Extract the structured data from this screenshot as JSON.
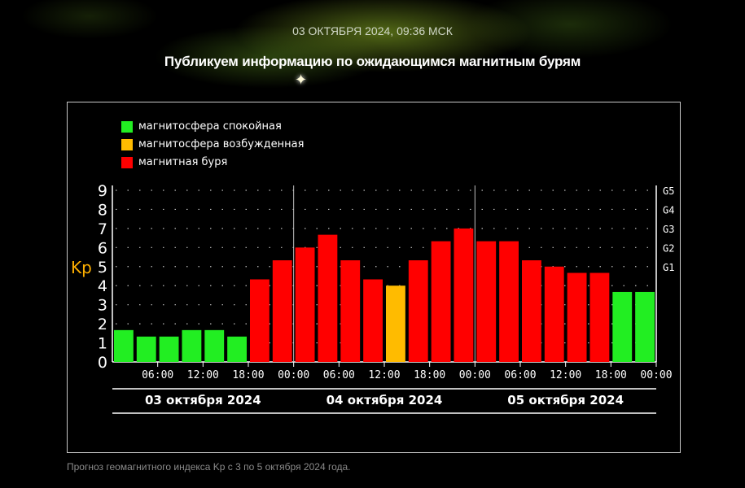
{
  "header": {
    "date_line": "03 ОКТЯБРЯ 2024, 09:36 МСК",
    "headline": "Публикуем информацию по ожидающимся магнитным бурям",
    "star_glyph": "✦"
  },
  "chart_data": {
    "type": "bar",
    "title": "",
    "ylabel": "Kp",
    "ylim": [
      0,
      9
    ],
    "yticks": [
      "0",
      "1",
      "2",
      "3",
      "4",
      "5",
      "6",
      "7",
      "8",
      "9"
    ],
    "g_levels": [
      {
        "label": "G1",
        "kp": 5
      },
      {
        "label": "G2",
        "kp": 6
      },
      {
        "label": "G3",
        "kp": 7
      },
      {
        "label": "G4",
        "kp": 8
      },
      {
        "label": "G5",
        "kp": 9
      }
    ],
    "legend": [
      {
        "key": "calm",
        "label": "магнитосфера спокойная",
        "color": "#22ee22"
      },
      {
        "key": "excited",
        "label": "магнитосфера возбужденная",
        "color": "#ffbb00"
      },
      {
        "key": "storm",
        "label": "магнитная буря",
        "color": "#ff0000"
      }
    ],
    "values": [
      1.67,
      1.33,
      1.33,
      1.67,
      1.67,
      1.33,
      4.33,
      5.33,
      6.0,
      6.67,
      5.33,
      4.33,
      4.0,
      5.33,
      6.33,
      7.0,
      6.33,
      6.33,
      5.33,
      5.0,
      4.67,
      4.67,
      3.67,
      3.67
    ],
    "levels": [
      "calm",
      "calm",
      "calm",
      "calm",
      "calm",
      "calm",
      "storm",
      "storm",
      "storm",
      "storm",
      "storm",
      "storm",
      "excited",
      "storm",
      "storm",
      "storm",
      "storm",
      "storm",
      "storm",
      "storm",
      "storm",
      "storm",
      "calm",
      "calm"
    ],
    "hour_ticks": [
      {
        "label": "06:00",
        "slot": 2
      },
      {
        "label": "12:00",
        "slot": 4
      },
      {
        "label": "18:00",
        "slot": 6
      },
      {
        "label": "00:00",
        "slot": 8
      },
      {
        "label": "06:00",
        "slot": 10
      },
      {
        "label": "12:00",
        "slot": 12
      },
      {
        "label": "18:00",
        "slot": 14
      },
      {
        "label": "00:00",
        "slot": 16
      },
      {
        "label": "06:00",
        "slot": 18
      },
      {
        "label": "12:00",
        "slot": 20
      },
      {
        "label": "18:00",
        "slot": 22
      },
      {
        "label": "00:00",
        "slot": 24
      }
    ],
    "days": [
      "03 октября 2024",
      "04 октября 2024",
      "05 октября 2024"
    ]
  },
  "footer": {
    "caption": "Прогноз геомагнитного индекса Kp с 3 по 5 октября 2024 года."
  }
}
